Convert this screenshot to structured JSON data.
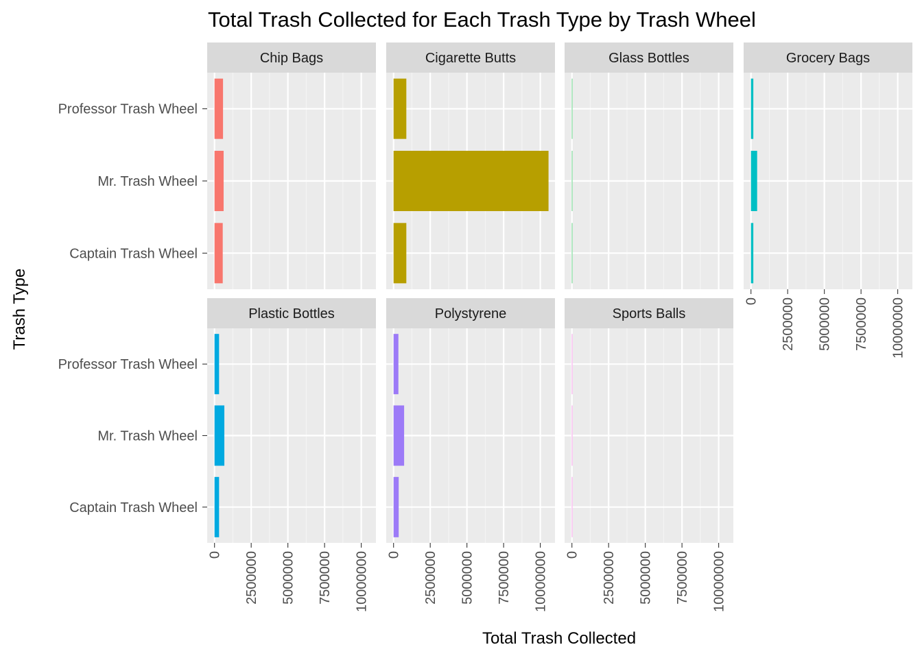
{
  "chart_data": {
    "type": "bar",
    "orientation": "horizontal",
    "layout": "facets",
    "title": "Total Trash Collected for Each Trash Type by Trash Wheel",
    "xlabel": "Total Trash Collected",
    "ylabel": "Trash Type",
    "categories": [
      "Captain Trash Wheel",
      "Mr. Trash Wheel",
      "Professor Trash Wheel"
    ],
    "xlim": [
      -500000,
      11000000
    ],
    "xticks": [
      "0",
      "2500000",
      "5000000",
      "7500000",
      "10000000"
    ],
    "grid": true,
    "legend": "none",
    "facets": [
      {
        "name": "Chip Bags",
        "color": "#F8766D",
        "values": [
          560000,
          620000,
          580000
        ]
      },
      {
        "name": "Cigarette Butts",
        "color": "#B79F00",
        "values": [
          870000,
          10560000,
          870000
        ]
      },
      {
        "name": "Glass Bottles",
        "color": "#00BA38",
        "values": [
          1000,
          11000,
          500
        ]
      },
      {
        "name": "Grocery Bags",
        "color": "#00BFC4",
        "values": [
          160000,
          420000,
          160000
        ]
      },
      {
        "name": "Plastic Bottles",
        "color": "#00A9E0",
        "values": [
          310000,
          670000,
          310000
        ]
      },
      {
        "name": "Polystyrene",
        "color": "#9C7AF7",
        "values": [
          350000,
          720000,
          330000
        ]
      },
      {
        "name": "Sports Balls",
        "color": "#F564E3",
        "values": [
          2000,
          6000,
          1000
        ]
      }
    ]
  }
}
